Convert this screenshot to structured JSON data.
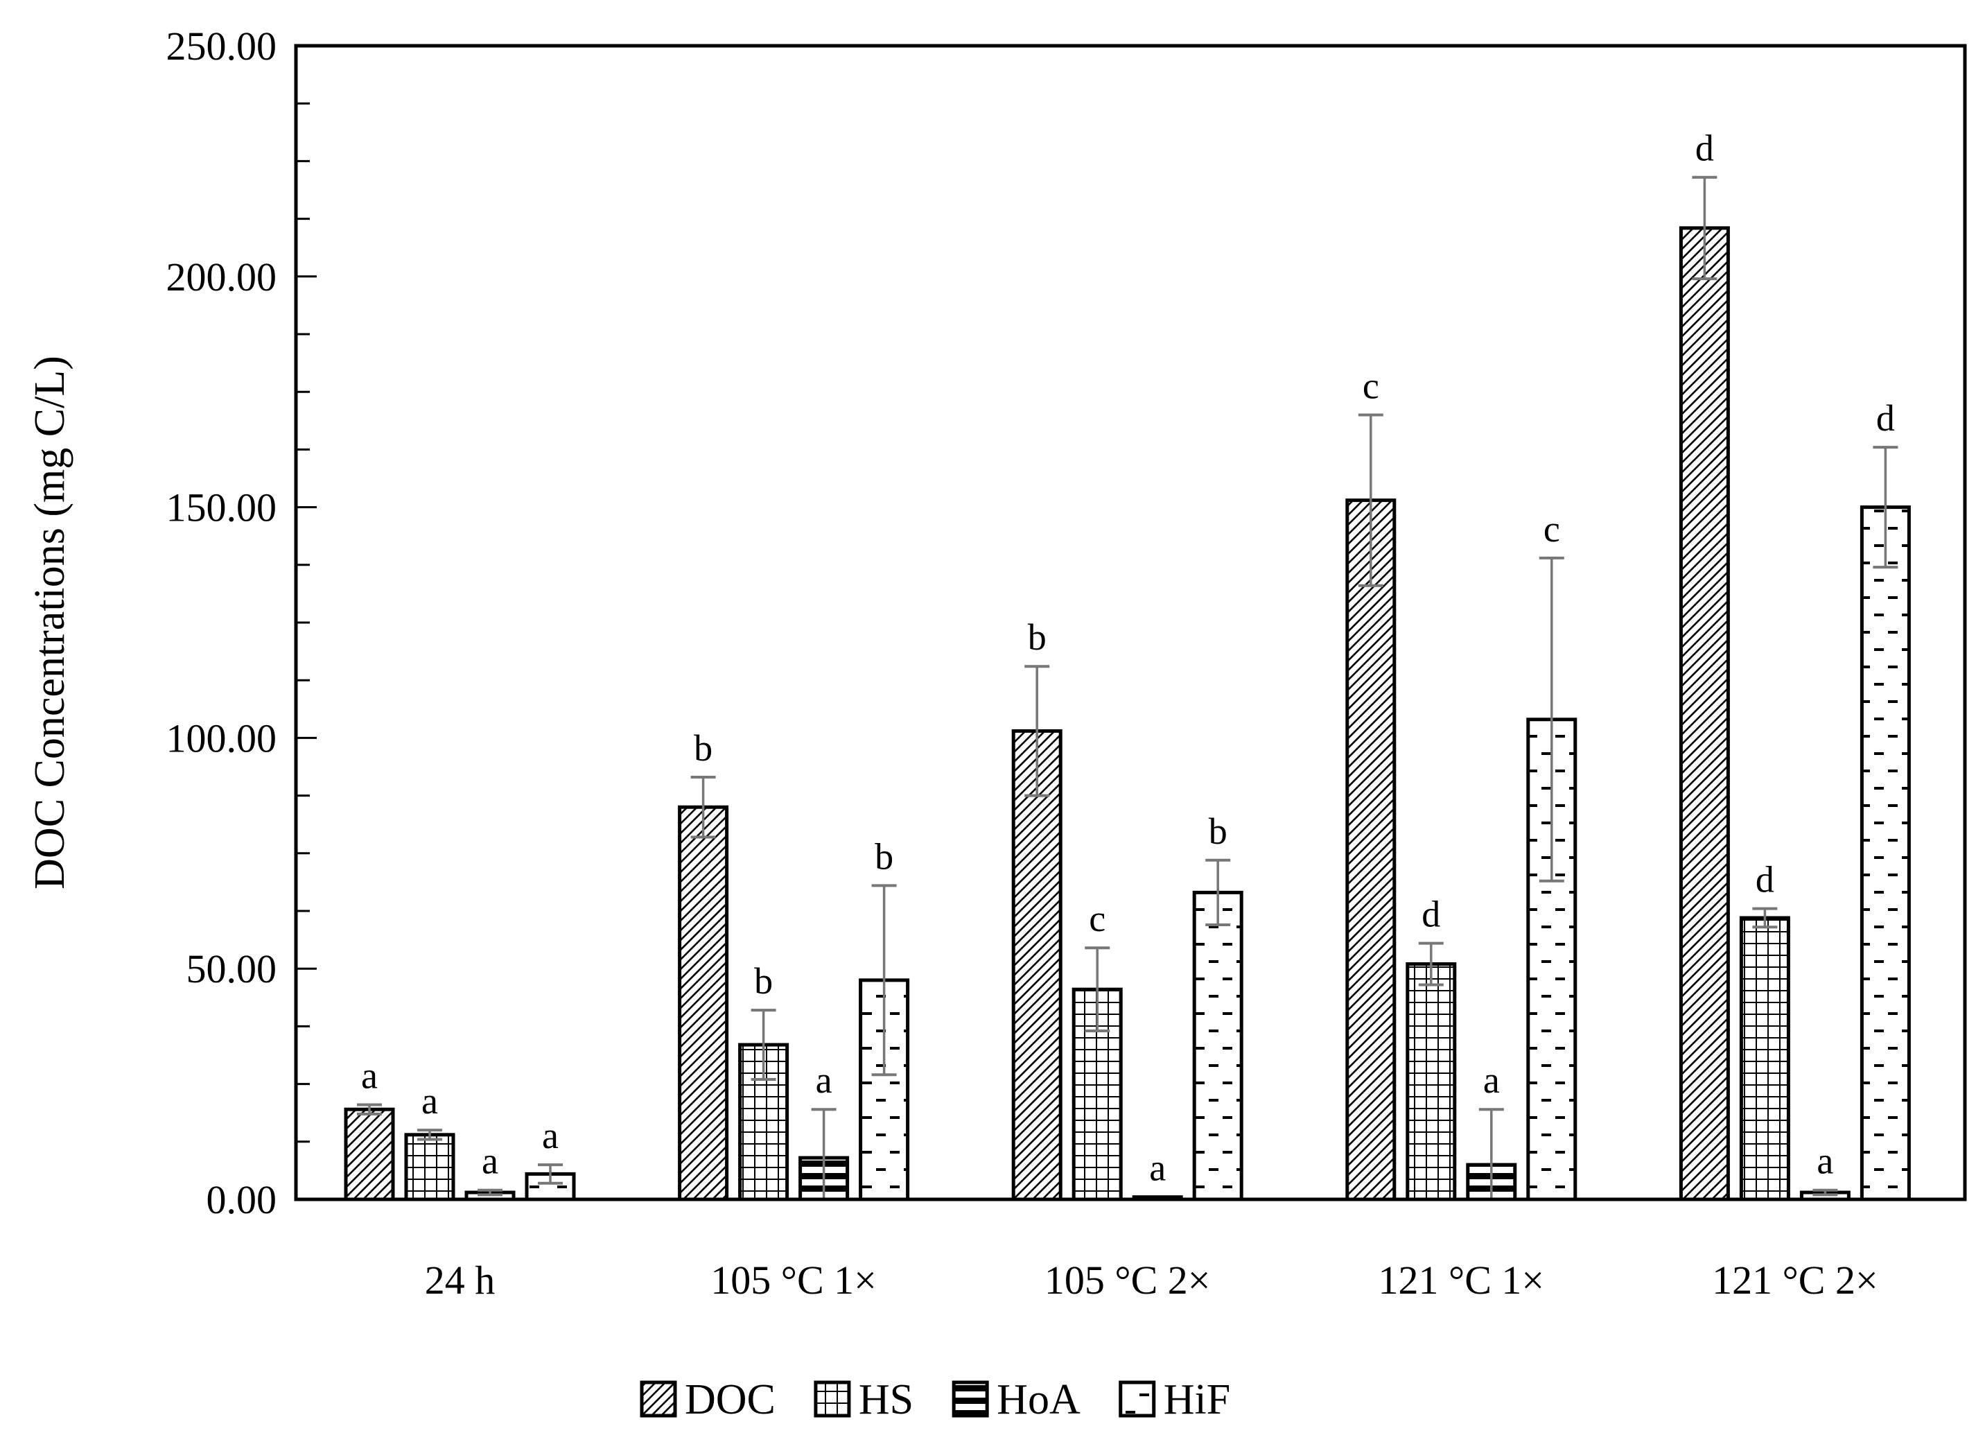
{
  "chart_data": {
    "type": "bar",
    "title": "",
    "xlabel": "",
    "ylabel": "DOC Concentrations (mg C/L)",
    "ylim": [
      0,
      250
    ],
    "y_ticks": [
      "0.00",
      "50.00",
      "100.00",
      "150.00",
      "200.00",
      "250.00"
    ],
    "grid": false,
    "legend_position": "bottom",
    "categories": [
      "24 h",
      "105 °C 1×",
      "105 °C 2×",
      "121 °C 1×",
      "121 °C 2×"
    ],
    "series": [
      {
        "name": "DOC",
        "pattern": "diagonal-hatch",
        "values": [
          19.5,
          85,
          101.5,
          151.5,
          210.5
        ],
        "errors": [
          1,
          6.5,
          14,
          18.5,
          11
        ],
        "letters": [
          "a",
          "b",
          "b",
          "c",
          "d"
        ]
      },
      {
        "name": "HS",
        "pattern": "grid",
        "values": [
          14,
          33.5,
          45.5,
          51,
          61
        ],
        "errors": [
          1,
          7.5,
          9,
          4.5,
          2
        ],
        "letters": [
          "a",
          "b",
          "c",
          "d",
          "d"
        ]
      },
      {
        "name": "HoA",
        "pattern": "horizontal-stripes",
        "values": [
          1.5,
          9,
          0.5,
          7.5,
          1.5
        ],
        "errors": [
          0.5,
          10.5,
          0,
          12,
          0.5
        ],
        "letters": [
          "a",
          "a",
          "a",
          "a",
          "a"
        ]
      },
      {
        "name": "HiF",
        "pattern": "dashes",
        "values": [
          5.5,
          47.5,
          66.5,
          104,
          150
        ],
        "errors": [
          2,
          20.5,
          7,
          35,
          13
        ],
        "letters": [
          "a",
          "b",
          "b",
          "c",
          "d"
        ]
      }
    ]
  }
}
